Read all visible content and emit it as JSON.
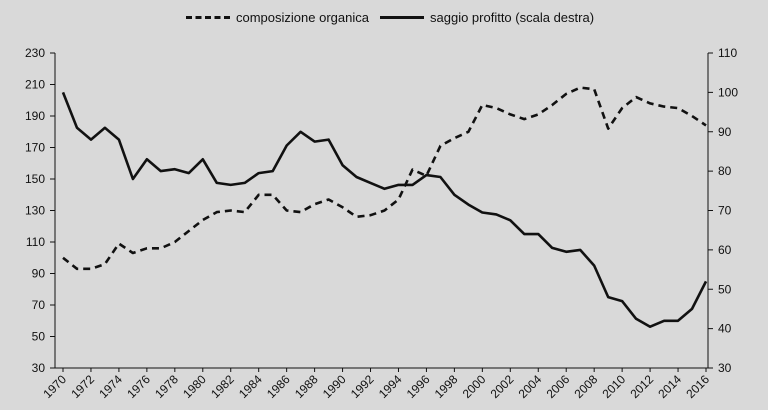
{
  "chart_data": {
    "type": "line",
    "x": [
      1970,
      1971,
      1972,
      1973,
      1974,
      1975,
      1976,
      1977,
      1978,
      1979,
      1980,
      1981,
      1982,
      1983,
      1984,
      1985,
      1986,
      1987,
      1988,
      1989,
      1990,
      1991,
      1992,
      1993,
      1994,
      1995,
      1996,
      1997,
      1998,
      1999,
      2000,
      2001,
      2002,
      2003,
      2004,
      2005,
      2006,
      2007,
      2008,
      2009,
      2010,
      2011,
      2012,
      2013,
      2014,
      2015,
      2016
    ],
    "x_tick_labels": [
      "1970",
      "1972",
      "1974",
      "1976",
      "1978",
      "1980",
      "1982",
      "1984",
      "1986",
      "1988",
      "1990",
      "1992",
      "1994",
      "1996",
      "1998",
      "2000",
      "2002",
      "2004",
      "2006",
      "2008",
      "2010",
      "2012",
      "2014",
      "2016"
    ],
    "y_left": {
      "ylim": [
        30,
        230
      ],
      "ticks": [
        30,
        50,
        70,
        90,
        110,
        130,
        150,
        170,
        190,
        210,
        230
      ]
    },
    "y_right": {
      "ylim": [
        30,
        110
      ],
      "ticks": [
        30,
        40,
        50,
        60,
        70,
        80,
        90,
        100,
        110
      ]
    },
    "series": [
      {
        "name": "composizione organica",
        "style": "dashed",
        "axis": "left",
        "values": [
          100,
          93,
          93,
          96,
          109,
          103,
          106,
          106,
          110,
          117,
          124,
          129,
          130,
          129,
          140,
          140,
          130,
          129,
          134,
          137,
          132,
          126,
          127,
          130,
          137,
          156,
          152,
          171,
          176,
          180,
          197,
          195,
          191,
          188,
          191,
          197,
          204,
          208,
          207,
          182,
          195,
          202,
          198,
          196,
          195,
          190,
          184
        ]
      },
      {
        "name": "saggio profitto (scala destra)",
        "style": "solid",
        "axis": "right",
        "values": [
          100,
          91,
          88,
          91,
          88,
          78,
          83,
          80,
          80.5,
          79.5,
          83,
          77,
          76.5,
          77,
          79.5,
          80,
          86.5,
          90,
          87.5,
          88,
          81.5,
          78.5,
          77,
          75.5,
          76.5,
          76.5,
          79,
          78.5,
          74,
          71.5,
          69.5,
          69,
          67.5,
          64,
          64,
          60.5,
          59.5,
          60,
          56,
          48,
          47,
          42.5,
          40.5,
          42,
          42,
          45,
          52
        ]
      }
    ],
    "grid": false,
    "legend_position": "top",
    "colors": {
      "background": "#d9d9d9",
      "line": "#111111"
    }
  }
}
